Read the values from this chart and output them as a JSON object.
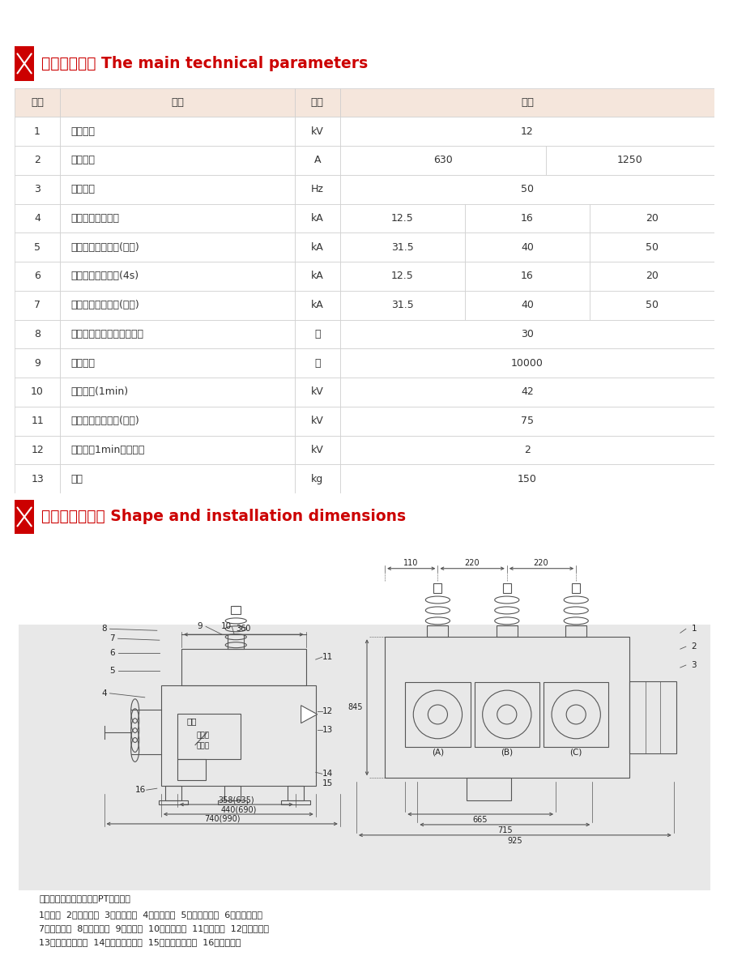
{
  "title1": "主要技术参数 The main technical parameters",
  "title2": "外形及安装尺寸 Shape and installation dimensions",
  "red_color": "#CC0000",
  "header_bg": "#F5E6DC",
  "border_color": "#CCCCCC",
  "text_color": "#333333",
  "table_headers": [
    "序号",
    "项目",
    "单位",
    "参数"
  ],
  "rows": [
    [
      "1",
      "额定电压",
      "kV",
      "12",
      "",
      ""
    ],
    [
      "2",
      "额定电流",
      "A",
      "630",
      "",
      "1250"
    ],
    [
      "3",
      "额定频率",
      "Hz",
      "50",
      "",
      ""
    ],
    [
      "4",
      "额定短路开断电流",
      "kA",
      "12.5",
      "16",
      "20"
    ],
    [
      "5",
      "额定峰值耐受电流(峰值)",
      "kA",
      "31.5",
      "40",
      "50"
    ],
    [
      "6",
      "额定短时耐受电流(4s)",
      "kA",
      "12.5",
      "16",
      "20"
    ],
    [
      "7",
      "额定短路关合电流(峰值)",
      "kA",
      "31.5",
      "40",
      "50"
    ],
    [
      "8",
      "额定短路开断电流开断次数",
      "次",
      "30",
      "",
      ""
    ],
    [
      "9",
      "机械寿命",
      "次",
      "10000",
      "",
      ""
    ],
    [
      "10",
      "工频耐压(1min)",
      "kV",
      "42",
      "",
      ""
    ],
    [
      "11",
      "雷电冲击耐受电压(峰值)",
      "kV",
      "75",
      "",
      ""
    ],
    [
      "12",
      "二次回路1min工频耐压",
      "kV",
      "2",
      "",
      ""
    ],
    [
      "13",
      "净重",
      "kg",
      "150",
      "",
      ""
    ]
  ],
  "note_text": "注：括号内数据为内置双PT箱体尺寸",
  "legend_line1": "1、箱体  2、产品铭牌  3、操作机构  4、接线端子  5、绝缘导电杆  6、电流互感器",
  "legend_line2": "7、分合指针  8、储能指针  9、绝缘筒  10、接线端子  11、后盖板  12、储能摇柄",
  "legend_line3": "13、操作机构铭牌  14、手动合闸拉环  15、手动分闸拉环  16、接地螺栓",
  "col_bounds": [
    0.0,
    0.065,
    0.4,
    0.465,
    1.0
  ],
  "param_sub2_split": 0.55,
  "white": "#FFFFFF",
  "light_gray": "#EBEBEB",
  "line_color": "#555555",
  "dim_color": "#444444"
}
